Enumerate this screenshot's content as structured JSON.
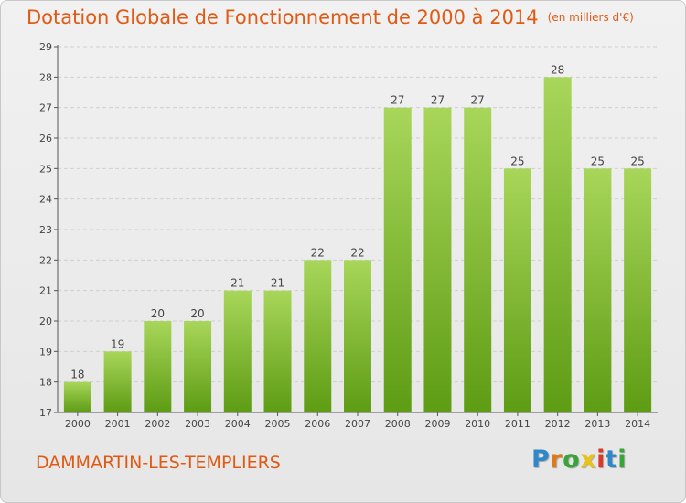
{
  "title": "Dotation Globale de Fonctionnement de 2000 à 2014",
  "unit": "(en milliers d'€)",
  "commune": "DAMMARTIN-LES-TEMPLIERS",
  "logo": {
    "letters": [
      "P",
      "r",
      "o",
      "x",
      "i",
      "t",
      "i"
    ],
    "colors": [
      "#2f86c8",
      "#e07a18",
      "#3aa33a",
      "#e8c21a",
      "#d83a2a",
      "#2f86c8",
      "#3aa33a"
    ]
  },
  "colors": {
    "title": "#e05a14",
    "bar_top": "#a8d65a",
    "bar_bottom": "#5e9c14",
    "axis": "#555555",
    "grid": "#d0d0d0"
  },
  "chart_data": {
    "type": "bar",
    "categories": [
      "2000",
      "2001",
      "2002",
      "2003",
      "2004",
      "2005",
      "2006",
      "2007",
      "2008",
      "2009",
      "2010",
      "2011",
      "2012",
      "2013",
      "2014"
    ],
    "values": [
      18,
      19,
      20,
      20,
      21,
      21,
      22,
      22,
      27,
      27,
      27,
      25,
      28,
      25,
      25
    ],
    "yticks": [
      17,
      18,
      19,
      20,
      21,
      22,
      23,
      24,
      25,
      26,
      27,
      28,
      29
    ],
    "ylim": [
      17,
      29
    ],
    "grid": "horizontal dashed"
  }
}
